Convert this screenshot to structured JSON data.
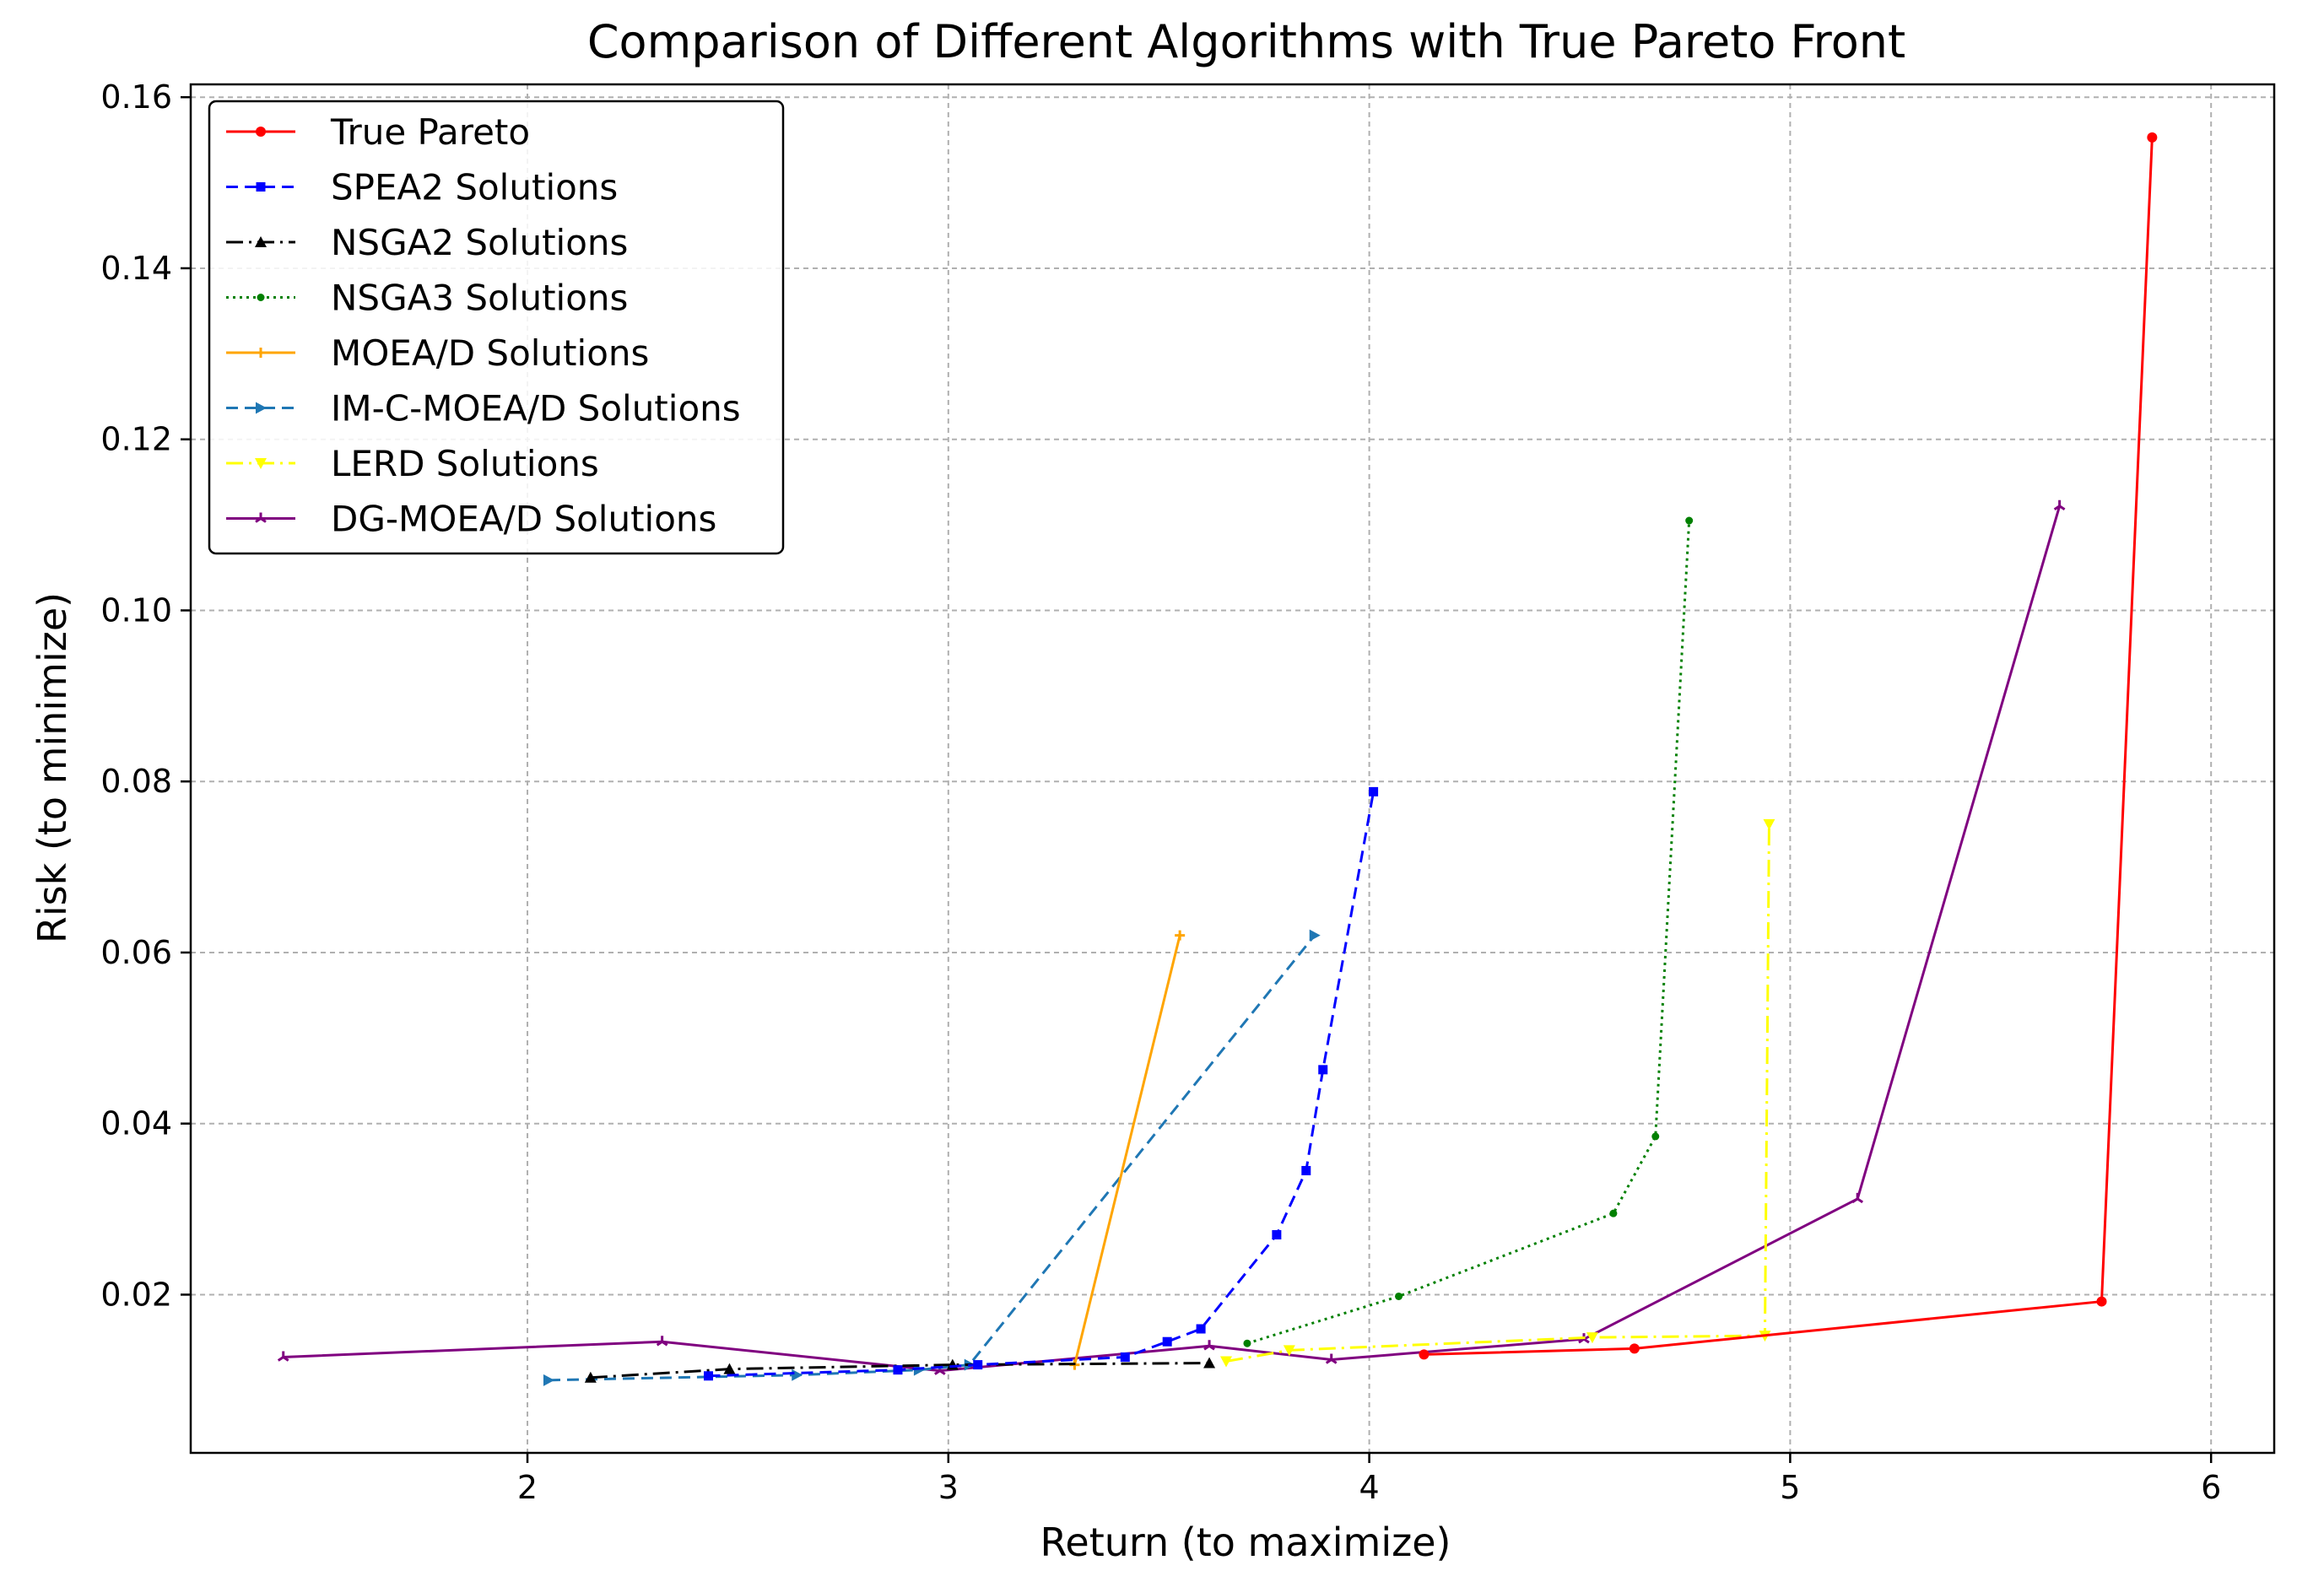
{
  "chart_data": {
    "type": "line",
    "title": "Comparison of Different Algorithms with True Pareto Front",
    "xlabel": "Return (to maximize)",
    "ylabel": "Risk (to minimize)",
    "xlim": [
      1.2,
      6.15
    ],
    "ylim": [
      0.0015,
      0.1615
    ],
    "xticks": [
      2,
      3,
      4,
      5,
      6
    ],
    "yticks": [
      0.02,
      0.04,
      0.06,
      0.08,
      0.1,
      0.12,
      0.14,
      0.16
    ],
    "ytick_labels": [
      "0.02",
      "0.04",
      "0.06",
      "0.08",
      "0.10",
      "0.12",
      "0.14",
      "0.16"
    ],
    "grid": true,
    "legend_position": "top-left",
    "series": [
      {
        "name": "True Pareto",
        "color": "#ff0000",
        "dash": "",
        "marker": "circle",
        "x": [
          4.13,
          4.63,
          5.74,
          5.86
        ],
        "y": [
          0.013,
          0.0137,
          0.0192,
          0.1553
        ]
      },
      {
        "name": "SPEA2 Solutions",
        "color": "#0000ff",
        "dash": "14 8",
        "marker": "square",
        "x": [
          2.43,
          2.88,
          3.07,
          3.42,
          3.52,
          3.6,
          3.78,
          3.85,
          3.89,
          4.01
        ],
        "y": [
          0.0105,
          0.0112,
          0.0118,
          0.0127,
          0.0145,
          0.016,
          0.027,
          0.0345,
          0.0463,
          0.0788
        ]
      },
      {
        "name": "NSGA2 Solutions",
        "color": "#000000",
        "dash": "20 7 3 7",
        "marker": "triangle-up",
        "x": [
          2.15,
          2.48,
          3.01,
          3.62
        ],
        "y": [
          0.0103,
          0.0113,
          0.0118,
          0.012
        ]
      },
      {
        "name": "NSGA3 Solutions",
        "color": "#008000",
        "dash": "3 5",
        "marker": "circle-small",
        "x": [
          3.71,
          4.07,
          4.58,
          4.68,
          4.76
        ],
        "y": [
          0.0143,
          0.0198,
          0.0295,
          0.0385,
          0.1105
        ]
      },
      {
        "name": "MOEA/D Solutions",
        "color": "#ffa500",
        "dash": "",
        "marker": "plus",
        "x": [
          3.3,
          3.55
        ],
        "y": [
          0.0118,
          0.062
        ]
      },
      {
        "name": "IM-C-MOEA/D Solutions",
        "color": "#1f77b4",
        "dash": "14 8",
        "marker": "triangle-right",
        "x": [
          2.05,
          2.64,
          2.93,
          3.05,
          3.87
        ],
        "y": [
          0.01,
          0.0106,
          0.0112,
          0.0118,
          0.062
        ]
      },
      {
        "name": "LERD Solutions",
        "color": "#ffff00",
        "dash": "20 7 3 7",
        "marker": "triangle-down",
        "x": [
          3.66,
          3.81,
          4.53,
          4.94,
          4.95
        ],
        "y": [
          0.0122,
          0.0135,
          0.015,
          0.0152,
          0.075
        ]
      },
      {
        "name": "DG-MOEA/D Solutions",
        "color": "#800080",
        "dash": "",
        "marker": "tri",
        "x": [
          1.42,
          2.32,
          2.98,
          3.62,
          3.91,
          4.51,
          5.16,
          5.64
        ],
        "y": [
          0.0127,
          0.0145,
          0.0111,
          0.014,
          0.0124,
          0.0148,
          0.0312,
          0.1122
        ]
      }
    ]
  }
}
